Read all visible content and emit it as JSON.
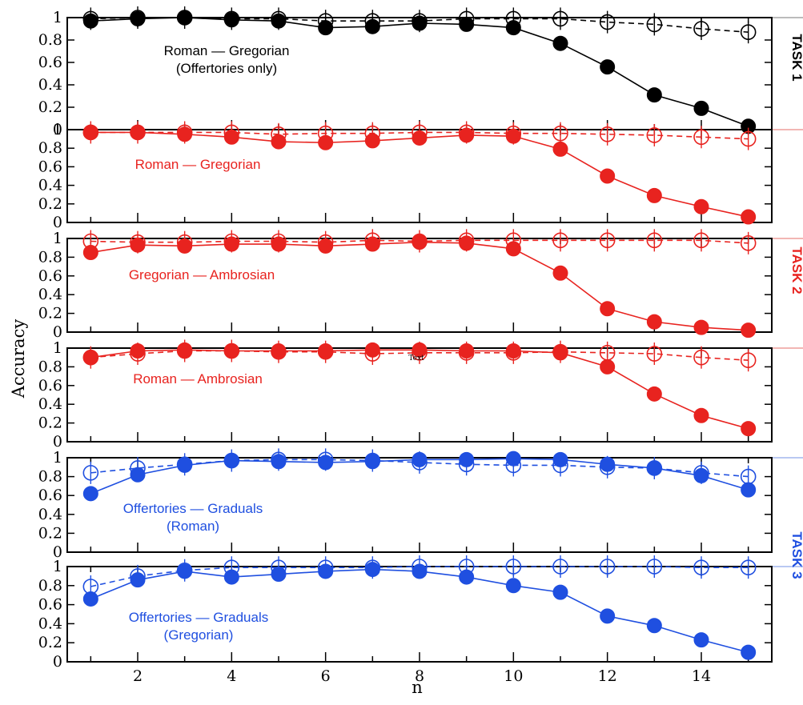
{
  "figure": {
    "ylabel": "Accuracy",
    "xlabel": "n",
    "stray_text": "Text",
    "task_labels": [
      {
        "text": "TASK 1",
        "color": "#000000"
      },
      {
        "text": "TASK 2",
        "color": "#e8231f"
      },
      {
        "text": "TASK 3",
        "color": "#1f4fe0"
      }
    ]
  },
  "chart_data": [
    {
      "type": "line",
      "title": "Roman — Gregorian\n(Offertories only)",
      "color": "#000000",
      "xlim": [
        0.5,
        15.5
      ],
      "ylim": [
        0,
        1
      ],
      "x": [
        1,
        2,
        3,
        4,
        5,
        6,
        7,
        8,
        9,
        10,
        11,
        12,
        13,
        14,
        15
      ],
      "series": [
        {
          "style": "solid-filled",
          "values": [
            0.97,
            0.99,
            1.0,
            0.98,
            0.97,
            0.91,
            0.92,
            0.95,
            0.94,
            0.91,
            0.77,
            0.56,
            0.31,
            0.19,
            0.03
          ]
        },
        {
          "style": "dashed-open",
          "values": [
            0.99,
            1.0,
            1.0,
            0.99,
            0.99,
            0.97,
            0.97,
            0.97,
            0.99,
            0.99,
            0.99,
            0.96,
            0.94,
            0.9,
            0.87
          ]
        }
      ]
    },
    {
      "type": "line",
      "title": "Roman — Gregorian",
      "color": "#e8231f",
      "xlim": [
        0.5,
        15.5
      ],
      "ylim": [
        0,
        1
      ],
      "x": [
        1,
        2,
        3,
        4,
        5,
        6,
        7,
        8,
        9,
        10,
        11,
        12,
        13,
        14,
        15
      ],
      "series": [
        {
          "style": "solid-filled",
          "values": [
            0.97,
            0.97,
            0.95,
            0.92,
            0.87,
            0.86,
            0.88,
            0.91,
            0.94,
            0.93,
            0.79,
            0.5,
            0.29,
            0.17,
            0.06
          ]
        },
        {
          "style": "dashed-open",
          "values": [
            0.97,
            0.97,
            0.97,
            0.97,
            0.95,
            0.96,
            0.96,
            0.97,
            0.97,
            0.96,
            0.96,
            0.95,
            0.94,
            0.92,
            0.9
          ]
        }
      ]
    },
    {
      "type": "line",
      "title": "Gregorian — Ambrosian",
      "color": "#e8231f",
      "xlim": [
        0.5,
        15.5
      ],
      "ylim": [
        0,
        1
      ],
      "x": [
        1,
        2,
        3,
        4,
        5,
        6,
        7,
        8,
        9,
        10,
        11,
        12,
        13,
        14,
        15
      ],
      "series": [
        {
          "style": "solid-filled",
          "values": [
            0.85,
            0.93,
            0.92,
            0.94,
            0.94,
            0.92,
            0.94,
            0.96,
            0.95,
            0.89,
            0.63,
            0.25,
            0.11,
            0.05,
            0.02
          ]
        },
        {
          "style": "dashed-open",
          "values": [
            0.97,
            0.96,
            0.96,
            0.97,
            0.97,
            0.96,
            0.98,
            0.97,
            0.98,
            0.98,
            0.98,
            0.98,
            0.98,
            0.98,
            0.95
          ]
        }
      ]
    },
    {
      "type": "line",
      "title": "Roman — Ambrosian",
      "color": "#e8231f",
      "xlim": [
        0.5,
        15.5
      ],
      "ylim": [
        0,
        1
      ],
      "x": [
        1,
        2,
        3,
        4,
        5,
        6,
        7,
        8,
        9,
        10,
        11,
        12,
        13,
        14,
        15
      ],
      "series": [
        {
          "style": "solid-filled",
          "values": [
            0.9,
            0.97,
            0.98,
            0.97,
            0.97,
            0.97,
            0.98,
            0.98,
            0.97,
            0.97,
            0.95,
            0.8,
            0.51,
            0.28,
            0.14
          ]
        },
        {
          "style": "dashed-open",
          "values": [
            0.9,
            0.94,
            0.97,
            0.97,
            0.96,
            0.96,
            0.94,
            0.95,
            0.95,
            0.95,
            0.96,
            0.95,
            0.94,
            0.9,
            0.87
          ]
        }
      ]
    },
    {
      "type": "line",
      "title": "Offertories — Graduals\n(Roman)",
      "color": "#1f4fe0",
      "xlim": [
        0.5,
        15.5
      ],
      "ylim": [
        0,
        1
      ],
      "x": [
        1,
        2,
        3,
        4,
        5,
        6,
        7,
        8,
        9,
        10,
        11,
        12,
        13,
        14,
        15
      ],
      "series": [
        {
          "style": "solid-filled",
          "values": [
            0.62,
            0.82,
            0.92,
            0.97,
            0.96,
            0.95,
            0.96,
            0.98,
            0.98,
            0.99,
            0.98,
            0.93,
            0.89,
            0.81,
            0.66
          ]
        },
        {
          "style": "dashed-open",
          "values": [
            0.84,
            0.89,
            0.93,
            0.97,
            0.98,
            0.98,
            0.97,
            0.95,
            0.93,
            0.92,
            0.92,
            0.9,
            0.89,
            0.84,
            0.8
          ]
        }
      ]
    },
    {
      "type": "line",
      "title": "Offertories — Graduals\n(Gregorian)",
      "color": "#1f4fe0",
      "xlim": [
        0.5,
        15.5
      ],
      "ylim": [
        0,
        1
      ],
      "x": [
        1,
        2,
        3,
        4,
        5,
        6,
        7,
        8,
        9,
        10,
        11,
        12,
        13,
        14,
        15
      ],
      "xticks": [
        2,
        4,
        6,
        8,
        10,
        12,
        14
      ],
      "series": [
        {
          "style": "solid-filled",
          "values": [
            0.66,
            0.86,
            0.95,
            0.89,
            0.92,
            0.95,
            0.97,
            0.95,
            0.89,
            0.8,
            0.73,
            0.48,
            0.38,
            0.23,
            0.1
          ]
        },
        {
          "style": "dashed-open",
          "values": [
            0.79,
            0.9,
            0.96,
            0.99,
            0.99,
            0.99,
            0.99,
            1.0,
            1.0,
            1.0,
            1.0,
            1.0,
            1.0,
            0.99,
            0.99
          ]
        }
      ]
    }
  ]
}
